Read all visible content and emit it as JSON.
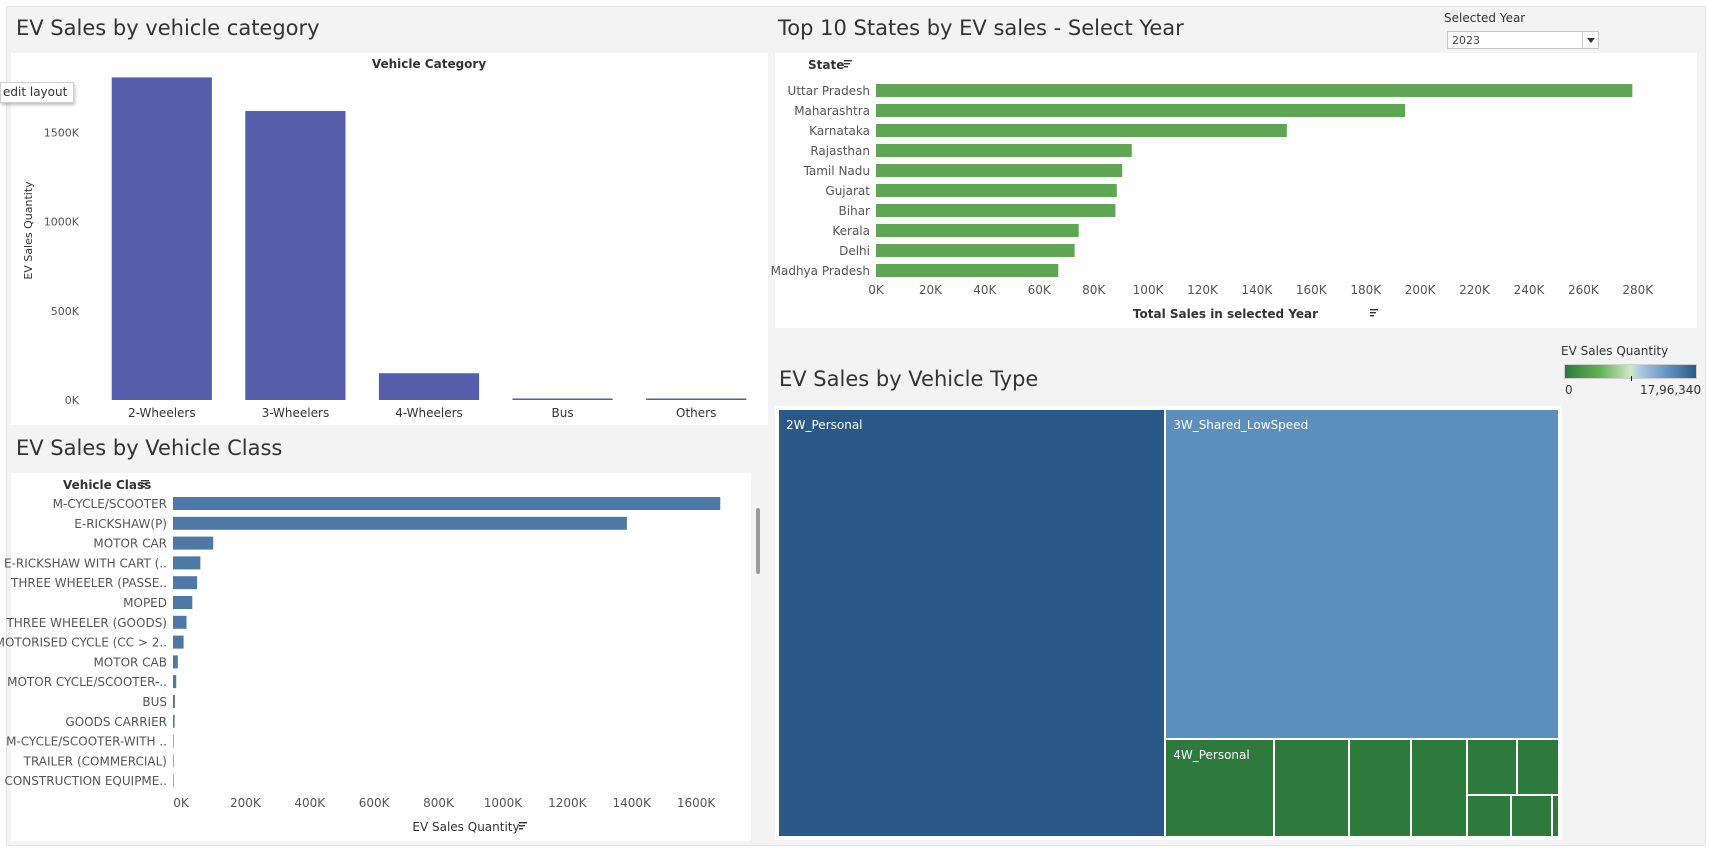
{
  "filter": {
    "label": "Selected Year",
    "value": "2023"
  },
  "tooltip": "edit layout",
  "legend": {
    "title": "EV Sales Quantity",
    "min_label": "0",
    "max_label": "17,96,340",
    "colors": [
      "#2d7a3c",
      "#67b55a",
      "#5d8fbd",
      "#2b5987"
    ]
  },
  "chart_data": [
    {
      "type": "bar",
      "title": "EV Sales by vehicle category",
      "subtitle": "Vehicle Category",
      "xlabel": "",
      "ylabel": "EV Sales Quantity",
      "categories": [
        "2-Wheelers",
        "3-Wheelers",
        "4-Wheelers",
        "Bus",
        "Others"
      ],
      "values": [
        1808000,
        1620000,
        150000,
        6000,
        5000
      ],
      "ylim": [
        0,
        1900000
      ],
      "yticks": [
        0,
        500000,
        1000000,
        1500000
      ],
      "ytick_labels": [
        "0K",
        "500K",
        "1000K",
        "1500K"
      ],
      "color": "#545eab",
      "grid": false
    },
    {
      "type": "bar",
      "orientation": "horizontal",
      "title": "Top 10 States by EV sales - Select Year",
      "row_header": "State",
      "xlabel": "Total Sales in selected Year",
      "categories": [
        "Uttar Pradesh",
        "Maharashtra",
        "Karnataka",
        "Rajasthan",
        "Tamil Nadu",
        "Gujarat",
        "Bihar",
        "Kerala",
        "Delhi",
        "Madhya Pradesh"
      ],
      "values": [
        278000,
        194500,
        151000,
        94000,
        90500,
        88500,
        88000,
        74500,
        73000,
        67000
      ],
      "xlim": [
        0,
        290000
      ],
      "xticks": [
        0,
        20000,
        40000,
        60000,
        80000,
        100000,
        120000,
        140000,
        160000,
        180000,
        200000,
        220000,
        240000,
        260000,
        280000
      ],
      "xtick_labels": [
        "0K",
        "20K",
        "40K",
        "60K",
        "80K",
        "100K",
        "120K",
        "140K",
        "160K",
        "180K",
        "200K",
        "220K",
        "240K",
        "260K",
        "280K"
      ],
      "color": "#5ea653",
      "grid": false
    },
    {
      "type": "bar",
      "orientation": "horizontal",
      "title": "EV Sales by Vehicle Class",
      "row_header": "Vehicle Class",
      "xlabel": "EV Sales Quantity",
      "categories": [
        "M-CYCLE/SCOOTER",
        "E-RICKSHAW(P)",
        "MOTOR CAR",
        "E-RICKSHAW WITH CART (..",
        "THREE WHEELER (PASSE..",
        "MOPED",
        "THREE WHEELER (GOODS)",
        "MOTORISED CYCLE (CC > 2..",
        "MOTOR CAB",
        "MOTOR CYCLE/SCOOTER-..",
        "BUS",
        "GOODS CARRIER",
        "M-CYCLE/SCOOTER-WITH ..",
        "TRAILER (COMMERCIAL)",
        "CONSTRUCTION EQUIPME.."
      ],
      "values": [
        1700000,
        1410000,
        125000,
        85000,
        75000,
        60000,
        42000,
        33000,
        15000,
        10000,
        6000,
        5000,
        1500,
        1000,
        500
      ],
      "xlim": [
        0,
        1780000
      ],
      "xticks": [
        0,
        200000,
        400000,
        600000,
        800000,
        1000000,
        1200000,
        1400000,
        1600000
      ],
      "xtick_labels": [
        "0K",
        "200K",
        "400K",
        "600K",
        "800K",
        "1000K",
        "1200K",
        "1400K",
        "1600K"
      ],
      "color": "#4e79a7",
      "grid": false
    },
    {
      "type": "treemap",
      "title": "EV Sales by Vehicle Type",
      "labels": [
        "2W_Personal",
        "3W_Shared_LowSpeed",
        "4W_Personal",
        "",
        "",
        "",
        "",
        "",
        "",
        "",
        ""
      ],
      "values": [
        1796340,
        1410000,
        115000,
        80000,
        65000,
        60000,
        30000,
        25000,
        20000,
        19000,
        3000
      ],
      "colors": [
        "#2b5987",
        "#5d8fbd",
        "#2d7a3c",
        "#2d7a3c",
        "#2d7a3c",
        "#2d7a3c",
        "#2d7a3c",
        "#2d7a3c",
        "#2d7a3c",
        "#2d7a3c",
        "#2d7a3c"
      ]
    }
  ]
}
